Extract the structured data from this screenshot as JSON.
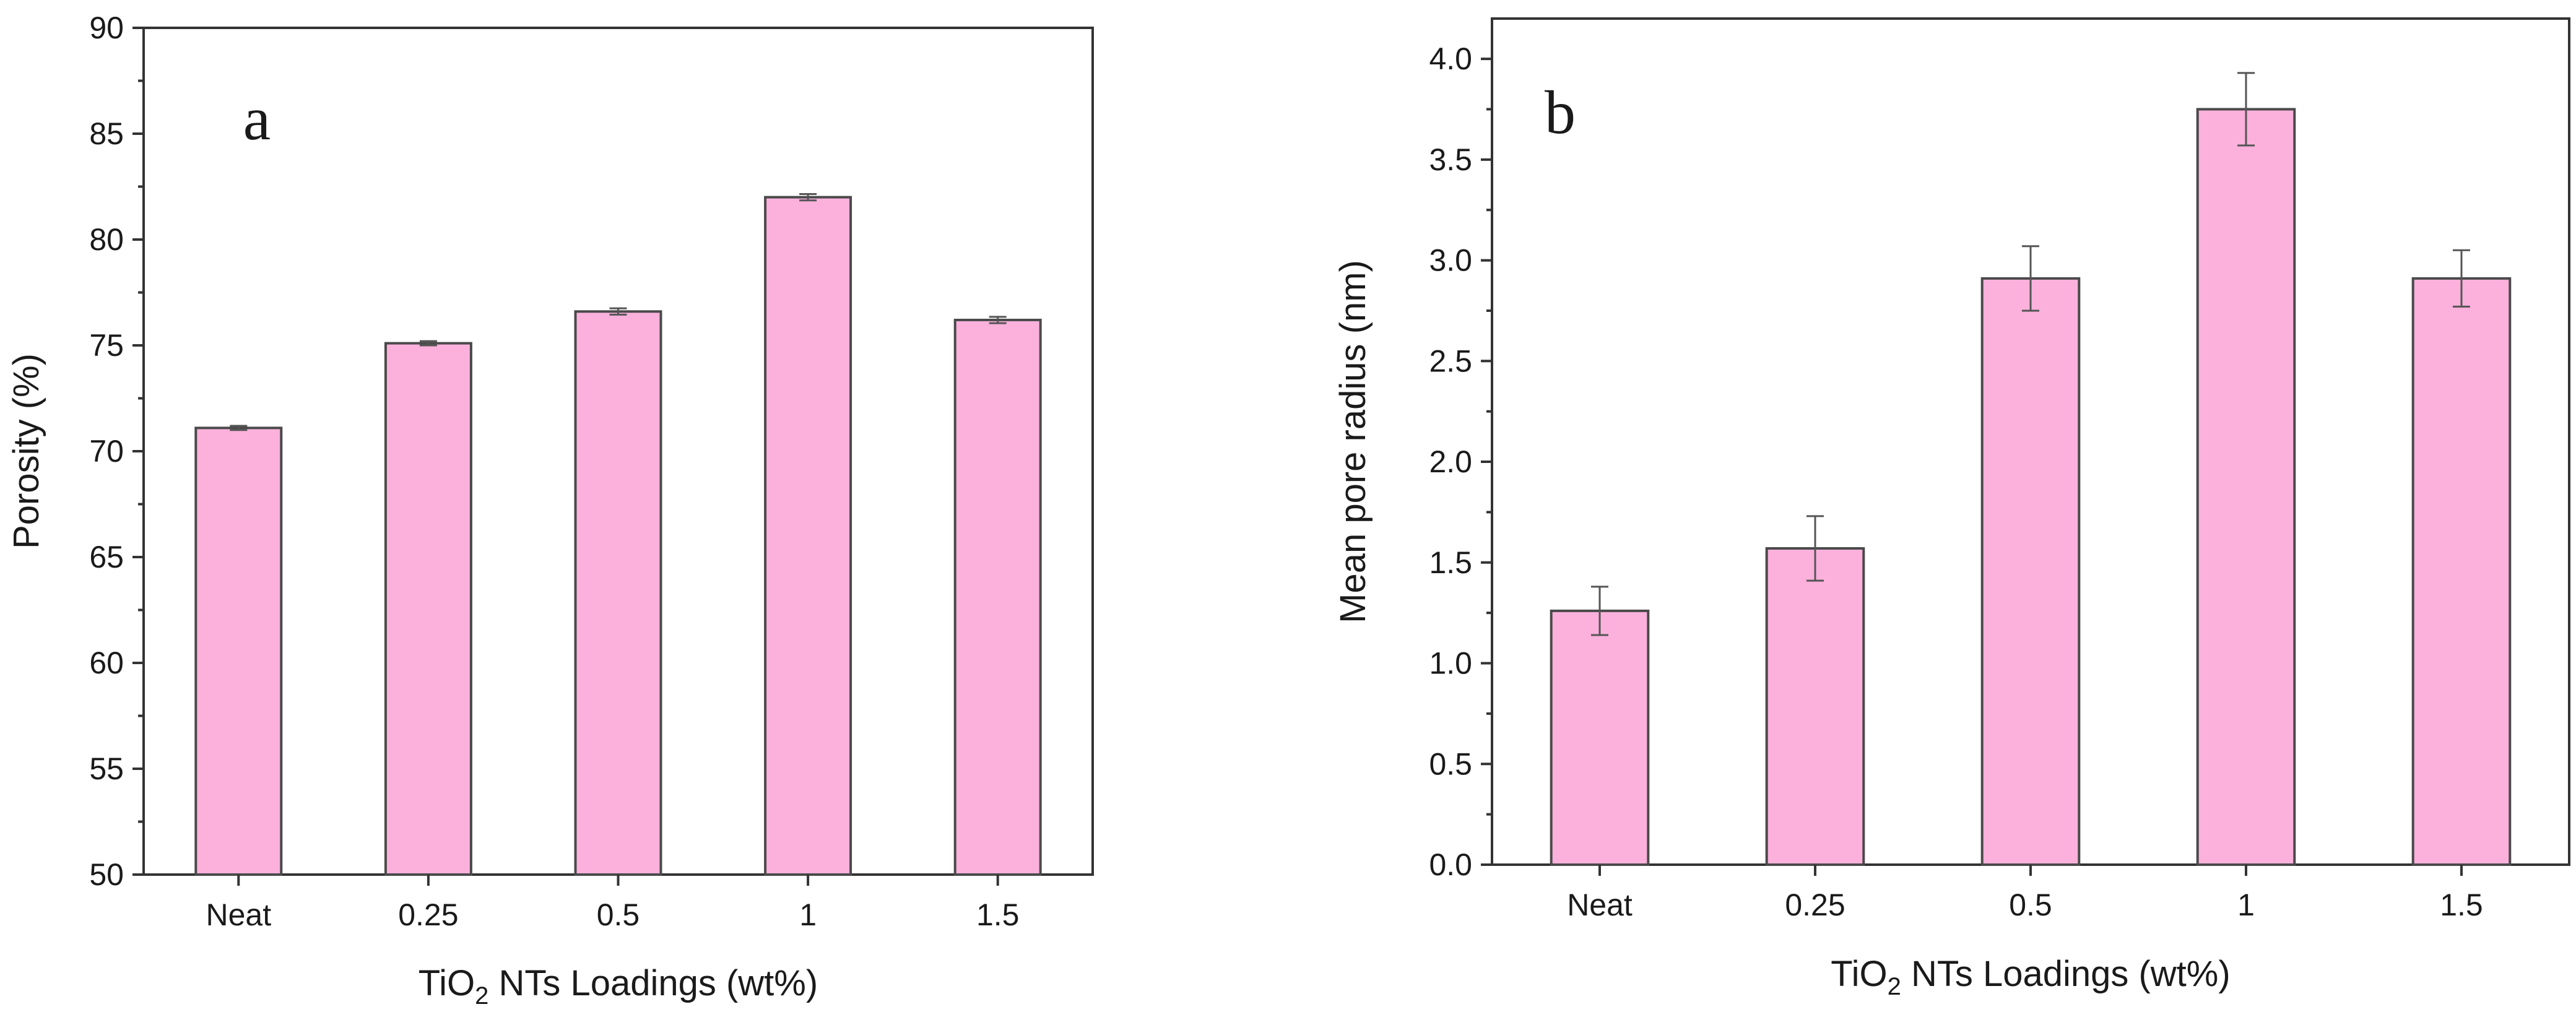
{
  "chart_data": [
    {
      "type": "bar",
      "panel_label": "a",
      "categories": [
        "Neat",
        "0.25",
        "0.5",
        "1",
        "1.5"
      ],
      "values": [
        71.1,
        75.1,
        76.6,
        82.0,
        76.2
      ],
      "errors": [
        0.1,
        0.1,
        0.15,
        0.15,
        0.15
      ],
      "xlabel_prefix": "TiO",
      "xlabel_sub": "2",
      "xlabel_suffix": " NTs Loadings (wt%)",
      "ylabel": "Porosity (%)",
      "ylim": [
        50,
        90
      ],
      "yticks": [
        50,
        55,
        60,
        65,
        70,
        75,
        80,
        85,
        90
      ],
      "ytick_labels": [
        "50",
        "55",
        "60",
        "65",
        "70",
        "75",
        "80",
        "85",
        "90"
      ],
      "bar_color": "#fbb1dc",
      "grid": false
    },
    {
      "type": "bar",
      "panel_label": "b",
      "categories": [
        "Neat",
        "0.25",
        "0.5",
        "1",
        "1.5"
      ],
      "values": [
        1.26,
        1.57,
        2.91,
        3.75,
        2.91
      ],
      "errors": [
        0.12,
        0.16,
        0.16,
        0.18,
        0.14
      ],
      "xlabel_prefix": "TiO",
      "xlabel_sub": "2",
      "xlabel_suffix": " NTs Loadings (wt%)",
      "ylabel": "Mean pore radius (nm)",
      "ylim": [
        0,
        4.2
      ],
      "yticks": [
        0,
        0.5,
        1,
        1.5,
        2,
        2.5,
        3,
        3.5,
        4
      ],
      "ytick_labels": [
        "0.0",
        "0.5",
        "1.0",
        "1.5",
        "2.0",
        "2.5",
        "3.0",
        "3.5",
        "4.0"
      ],
      "bar_color": "#fbb1dc",
      "grid": false
    }
  ]
}
